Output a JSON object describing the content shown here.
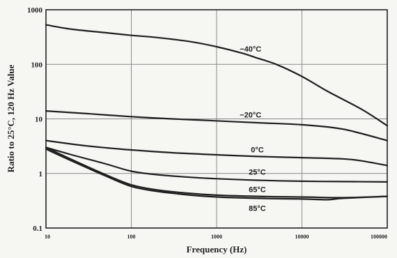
{
  "chart_data": {
    "type": "line",
    "title": "",
    "xlabel": "Frequency (Hz)",
    "ylabel": "Ratio to 25°C, 120 Hz Value",
    "xscale": "log",
    "yscale": "log",
    "xlim": [
      10,
      100000
    ],
    "ylim": [
      0.1,
      1000
    ],
    "grid": true,
    "x_ticks": [
      10,
      100,
      1000,
      10000,
      100000
    ],
    "x_tick_labels": [
      "10",
      "100",
      "1000",
      "10000",
      "100000"
    ],
    "y_ticks": [
      0.1,
      1,
      10,
      100,
      1000
    ],
    "y_tick_labels": [
      "0.1",
      "1",
      "10",
      "100",
      "1000"
    ],
    "series": [
      {
        "name": "−40°C",
        "x": [
          10,
          20,
          50,
          100,
          200,
          500,
          1000,
          2000,
          3000,
          5000,
          10000,
          20000,
          50000,
          100000
        ],
        "y": [
          530,
          440,
          380,
          340,
          310,
          260,
          210,
          160,
          130,
          100,
          60,
          32,
          15,
          7.5
        ]
      },
      {
        "name": "−20°C",
        "x": [
          10,
          30,
          100,
          300,
          1000,
          3000,
          10000,
          30000,
          100000
        ],
        "y": [
          14,
          12.5,
          11,
          10,
          9.2,
          8.5,
          7.8,
          6.5,
          4
        ]
      },
      {
        "name": "0°C",
        "x": [
          10,
          30,
          100,
          300,
          1000,
          3000,
          10000,
          30000,
          50000,
          100000
        ],
        "y": [
          4,
          3.2,
          2.7,
          2.4,
          2.2,
          2.05,
          1.95,
          1.85,
          1.7,
          1.4
        ]
      },
      {
        "name": "25°C",
        "x": [
          10,
          20,
          50,
          100,
          200,
          500,
          1000,
          3000,
          10000,
          30000,
          100000
        ],
        "y": [
          3,
          2.2,
          1.5,
          1.1,
          0.95,
          0.85,
          0.8,
          0.75,
          0.72,
          0.71,
          0.7
        ]
      },
      {
        "name": "65°C",
        "x": [
          10,
          20,
          50,
          100,
          200,
          500,
          1000,
          3000,
          10000,
          30000,
          100000
        ],
        "y": [
          3,
          1.8,
          0.95,
          0.62,
          0.5,
          0.43,
          0.4,
          0.38,
          0.37,
          0.36,
          0.38
        ]
      },
      {
        "name": "85°C",
        "x": [
          10,
          20,
          50,
          100,
          200,
          500,
          1000,
          3000,
          10000,
          20000,
          30000,
          100000
        ],
        "y": [
          2.8,
          1.7,
          0.9,
          0.58,
          0.47,
          0.4,
          0.37,
          0.35,
          0.34,
          0.33,
          0.35,
          0.38
        ]
      }
    ]
  }
}
